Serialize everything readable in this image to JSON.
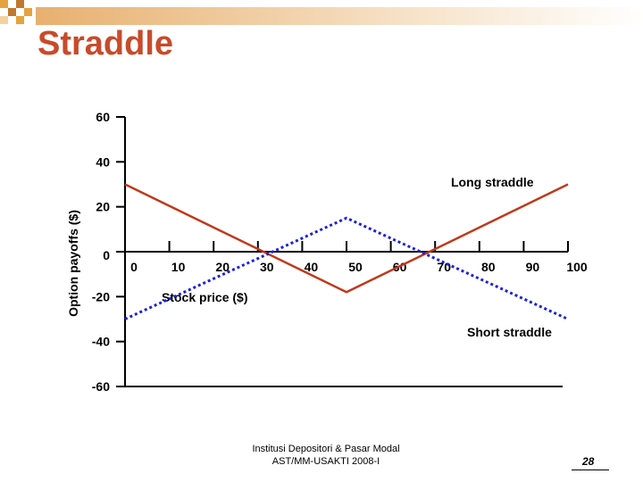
{
  "slide": {
    "title": "Straddle",
    "footer_line1": "Institusi Depositori & Pasar Modal",
    "footer_line2": "AST/MM-USAKTI 2008-I",
    "page_number": "28",
    "accent_color": "#C84B2A",
    "deco_colors": [
      "#E6A23C",
      "#C0782E",
      "#F3D2A0"
    ]
  },
  "chart_data": {
    "type": "line",
    "title": "",
    "xlabel": "Stock price ($)",
    "ylabel": "Option payoffs ($)",
    "x_ticks": [
      0,
      10,
      20,
      30,
      40,
      50,
      60,
      70,
      80,
      90,
      100
    ],
    "y_ticks": [
      60,
      40,
      20,
      0,
      -20,
      -40,
      -60
    ],
    "xlim": [
      0,
      100
    ],
    "ylim": [
      -60,
      60
    ],
    "grid": false,
    "series": [
      {
        "name": "Long straddle",
        "color": "#C0391B",
        "style": "solid",
        "x": [
          0,
          50,
          100
        ],
        "y": [
          30,
          -18,
          30
        ]
      },
      {
        "name": "Short straddle",
        "color": "#1E22D6",
        "style": "dotted",
        "x": [
          0,
          50,
          100
        ],
        "y": [
          -30,
          15,
          -30
        ]
      }
    ]
  }
}
